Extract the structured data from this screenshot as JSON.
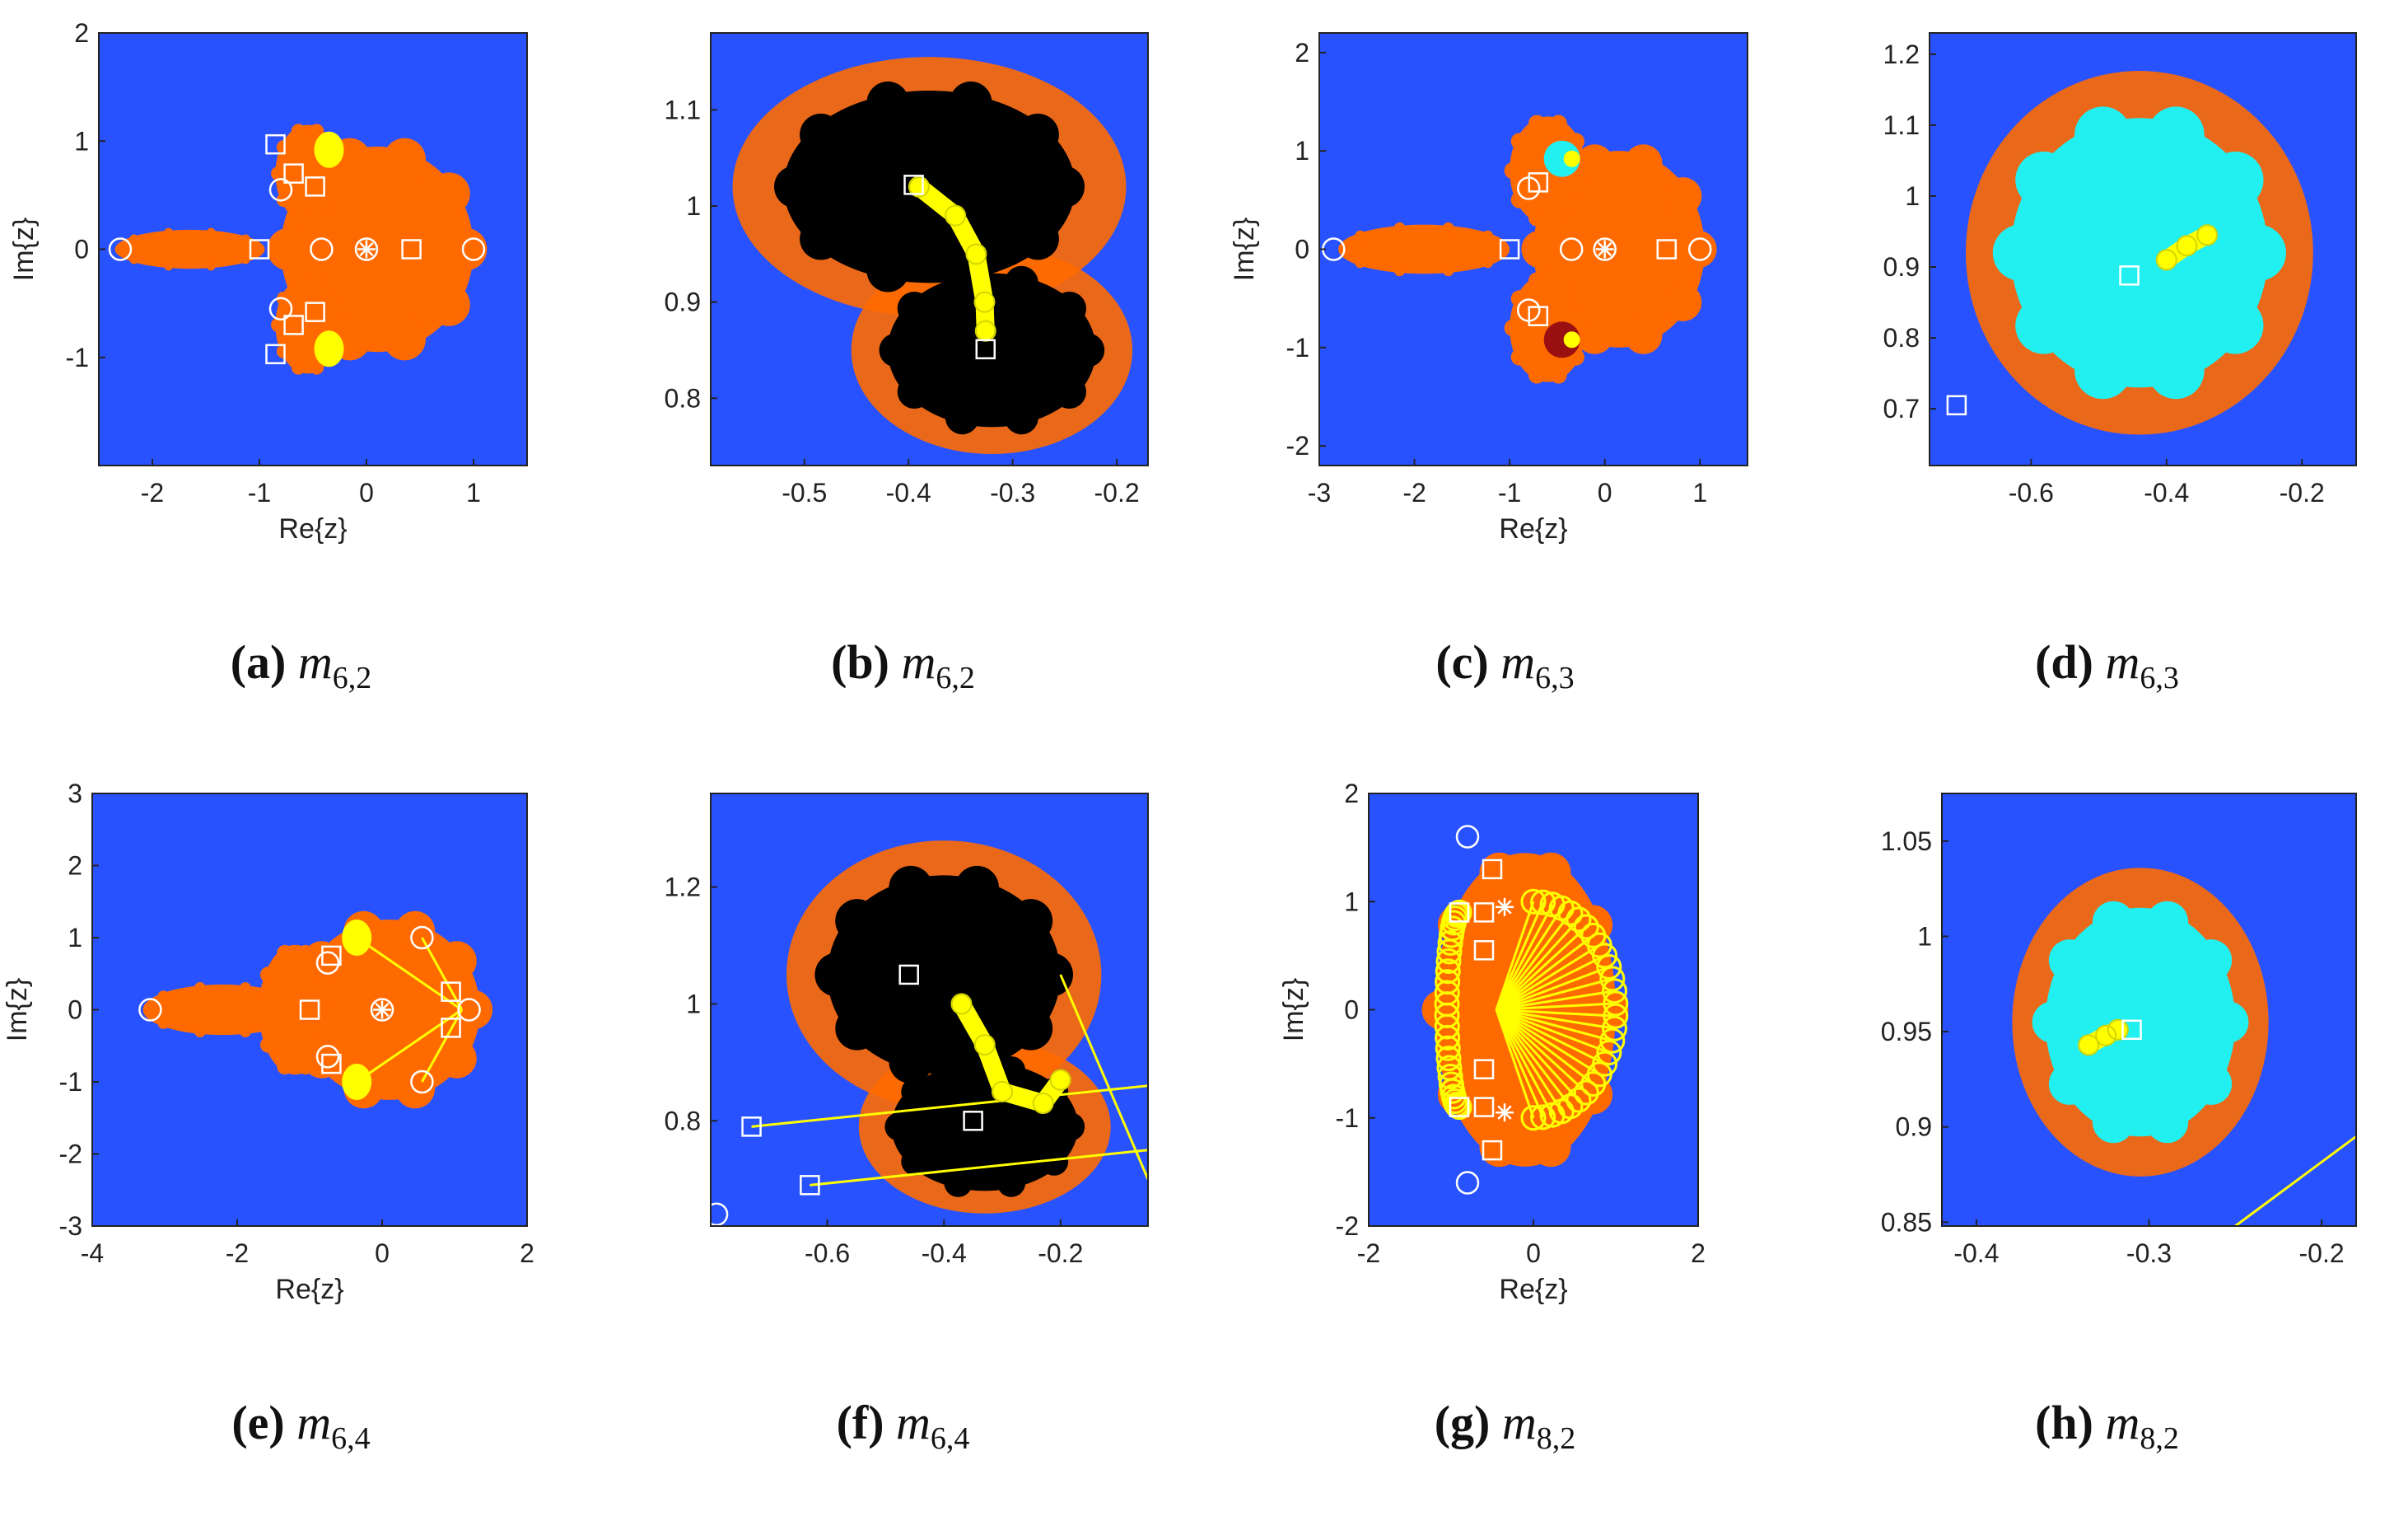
{
  "figure": {
    "panels": [
      {
        "id": "a",
        "label": "(a)",
        "sub": "6,2"
      },
      {
        "id": "b",
        "label": "(b)",
        "sub": "6,2"
      },
      {
        "id": "c",
        "label": "(c)",
        "sub": "6,3"
      },
      {
        "id": "d",
        "label": "(d)",
        "sub": "6,3"
      },
      {
        "id": "e",
        "label": "(e)",
        "sub": "6,4"
      },
      {
        "id": "f",
        "label": "(f)",
        "sub": "6,4"
      },
      {
        "id": "g",
        "label": "(g)",
        "sub": "8,2"
      },
      {
        "id": "h",
        "label": "(h)",
        "sub": "8,2"
      }
    ],
    "caption_symbol": "m"
  },
  "colors": {
    "blue": "#2952ff",
    "orange": "#ff6a00",
    "black": "#000000",
    "cyan": "#22f0f0",
    "yellow": "#ffff00",
    "darkred": "#9a1010",
    "white": "#ffffff"
  },
  "chart_data": [
    {
      "id": "a",
      "type": "scatter",
      "xlabel": "Re{z}",
      "ylabel": "Im{z}",
      "xlim": [
        -2.5,
        1.5
      ],
      "ylim": [
        -2,
        2
      ],
      "xticks": [
        -2,
        -1,
        0,
        1
      ],
      "yticks": [
        -1,
        0,
        1,
        2
      ],
      "xtick_labels": [
        "-2",
        "-1",
        "0",
        "1"
      ],
      "ytick_labels": [
        "-1",
        "0",
        "1",
        "2"
      ],
      "background": "blue",
      "regions": [
        {
          "shape": "ellipse",
          "cx": 0.1,
          "cy": 0,
          "rx": 0.9,
          "ry": 0.95,
          "fill": "orange"
        },
        {
          "shape": "ellipse",
          "cx": -1.65,
          "cy": 0,
          "rx": 0.7,
          "ry": 0.18,
          "fill": "orange"
        },
        {
          "shape": "ellipse",
          "cx": -0.55,
          "cy": 0.7,
          "rx": 0.3,
          "ry": 0.45,
          "fill": "orange"
        },
        {
          "shape": "ellipse",
          "cx": -0.55,
          "cy": -0.7,
          "rx": 0.3,
          "ry": 0.45,
          "fill": "orange"
        }
      ],
      "squares": [
        [
          -0.85,
          0.97
        ],
        [
          -0.68,
          0.7
        ],
        [
          -0.48,
          0.58
        ],
        [
          -1,
          0
        ],
        [
          0.42,
          0
        ],
        [
          -0.85,
          -0.97
        ],
        [
          -0.68,
          -0.7
        ],
        [
          -0.48,
          -0.58
        ]
      ],
      "circles": [
        [
          -2.3,
          0
        ],
        [
          1,
          0
        ],
        [
          -0.8,
          0.55
        ],
        [
          -0.8,
          -0.55
        ],
        [
          -0.42,
          0
        ],
        [
          0,
          0
        ]
      ],
      "stars": [
        [
          0,
          0
        ]
      ],
      "yellow_blobs": [
        [
          -0.35,
          0.92
        ],
        [
          -0.35,
          -0.92
        ]
      ]
    },
    {
      "id": "b",
      "type": "scatter",
      "xlabel": "",
      "ylabel": "",
      "xlim": [
        -0.59,
        -0.17
      ],
      "ylim": [
        0.73,
        1.18
      ],
      "xticks": [
        -0.5,
        -0.4,
        -0.3,
        -0.2
      ],
      "yticks": [
        0.8,
        0.9,
        1,
        1.1
      ],
      "xtick_labels": [
        "-0.5",
        "-0.4",
        "-0.3",
        "-0.2"
      ],
      "ytick_labels": [
        "0.8",
        "0.9",
        "1",
        "1.1"
      ],
      "background": "blue",
      "regions": [
        {
          "shape": "ellipse",
          "cx": -0.38,
          "cy": 1.02,
          "rx": 0.14,
          "ry": 0.1,
          "fill": "black"
        },
        {
          "shape": "ellipse",
          "cx": -0.32,
          "cy": 0.85,
          "rx": 0.1,
          "ry": 0.08,
          "fill": "black"
        }
      ],
      "squares": [
        [
          -0.395,
          1.022
        ],
        [
          -0.326,
          0.851
        ]
      ],
      "yellow_path": [
        [
          -0.39,
          1.02
        ],
        [
          -0.355,
          0.99
        ],
        [
          -0.335,
          0.95
        ],
        [
          -0.327,
          0.9
        ],
        [
          -0.326,
          0.87
        ]
      ]
    },
    {
      "id": "c",
      "type": "scatter",
      "xlabel": "Re{z}",
      "ylabel": "Im{z}",
      "xlim": [
        -3,
        1.5
      ],
      "ylim": [
        -2.2,
        2.2
      ],
      "xticks": [
        -3,
        -2,
        -1,
        0,
        1
      ],
      "yticks": [
        -2,
        -1,
        0,
        1,
        2
      ],
      "xtick_labels": [
        "-3",
        "-2",
        "-1",
        "0",
        "1"
      ],
      "ytick_labels": [
        "-2",
        "-1",
        "0",
        "1",
        "2"
      ],
      "background": "blue",
      "regions": [
        {
          "shape": "ellipse",
          "cx": 0.15,
          "cy": 0,
          "rx": 0.9,
          "ry": 1.0,
          "fill": "orange"
        },
        {
          "shape": "ellipse",
          "cx": -1.9,
          "cy": 0,
          "rx": 0.9,
          "ry": 0.25,
          "fill": "orange"
        },
        {
          "shape": "ellipse",
          "cx": -0.6,
          "cy": 0.8,
          "rx": 0.4,
          "ry": 0.55,
          "fill": "orange"
        },
        {
          "shape": "ellipse",
          "cx": -0.6,
          "cy": -0.8,
          "rx": 0.4,
          "ry": 0.55,
          "fill": "orange"
        }
      ],
      "squares": [
        [
          -0.7,
          0.68
        ],
        [
          -1,
          0
        ],
        [
          0.65,
          0
        ],
        [
          -0.7,
          -0.68
        ]
      ],
      "circles": [
        [
          -2.85,
          0
        ],
        [
          1,
          0
        ],
        [
          -0.8,
          0.62
        ],
        [
          -0.8,
          -0.62
        ],
        [
          -0.35,
          0
        ],
        [
          0,
          0
        ]
      ],
      "stars": [
        [
          0,
          0
        ]
      ],
      "cyan_blobs": [
        [
          -0.45,
          0.92
        ]
      ],
      "darkred_blobs": [
        [
          -0.45,
          -0.92
        ]
      ]
    },
    {
      "id": "d",
      "type": "scatter",
      "xlabel": "",
      "ylabel": "",
      "xlim": [
        -0.75,
        -0.12
      ],
      "ylim": [
        0.62,
        1.23
      ],
      "xticks": [
        -0.6,
        -0.4,
        -0.2
      ],
      "yticks": [
        0.7,
        0.8,
        0.9,
        1,
        1.1,
        1.2
      ],
      "xtick_labels": [
        "-0.6",
        "-0.4",
        "-0.2"
      ],
      "ytick_labels": [
        "0.7",
        "0.8",
        "0.9",
        "1",
        "1.1",
        "1.2"
      ],
      "background": "blue",
      "regions": [
        {
          "shape": "ellipse",
          "cx": -0.44,
          "cy": 0.92,
          "rx": 0.19,
          "ry": 0.19,
          "fill": "cyan"
        }
      ],
      "squares": [
        [
          -0.455,
          0.888
        ],
        [
          -0.71,
          0.705
        ]
      ],
      "yellow_path": [
        [
          -0.4,
          0.91
        ],
        [
          -0.37,
          0.93
        ],
        [
          -0.34,
          0.945
        ]
      ]
    },
    {
      "id": "e",
      "type": "scatter",
      "xlabel": "Re{z}",
      "ylabel": "Im{z}",
      "xlim": [
        -4,
        2
      ],
      "ylim": [
        -3,
        3
      ],
      "xticks": [
        -4,
        -2,
        0,
        2
      ],
      "yticks": [
        -3,
        -2,
        -1,
        0,
        1,
        2,
        3
      ],
      "xtick_labels": [
        "-4",
        "-2",
        "0",
        "2"
      ],
      "ytick_labels": [
        "-3",
        "-2",
        "-1",
        "0",
        "1",
        "2",
        "3"
      ],
      "background": "blue",
      "regions": [
        {
          "shape": "ellipse",
          "cx": 0.1,
          "cy": 0,
          "rx": 1.25,
          "ry": 1.25,
          "fill": "orange"
        },
        {
          "shape": "ellipse",
          "cx": -2.2,
          "cy": 0,
          "rx": 1.1,
          "ry": 0.35,
          "fill": "orange"
        },
        {
          "shape": "ellipse",
          "cx": -1.2,
          "cy": 0,
          "rx": 0.5,
          "ry": 0.9,
          "fill": "orange"
        }
      ],
      "squares": [
        [
          -0.7,
          0.75
        ],
        [
          -1,
          0
        ],
        [
          -0.7,
          -0.75
        ],
        [
          0.95,
          0.25
        ],
        [
          0.95,
          -0.25
        ]
      ],
      "circles": [
        [
          -3.2,
          0
        ],
        [
          0,
          0
        ],
        [
          -0.75,
          0.65
        ],
        [
          -0.75,
          -0.65
        ],
        [
          0.55,
          1
        ],
        [
          0.55,
          -1
        ],
        [
          1.2,
          0
        ]
      ],
      "stars": [
        [
          0,
          0
        ]
      ],
      "yellow_blobs": [
        [
          -0.35,
          1
        ],
        [
          -0.35,
          -1
        ]
      ],
      "yellow_lines": [
        [
          [
            -0.35,
            1
          ],
          [
            1.1,
            0
          ]
        ],
        [
          [
            -0.35,
            -1
          ],
          [
            1.1,
            0
          ]
        ],
        [
          [
            0.55,
            1
          ],
          [
            1.1,
            0
          ]
        ],
        [
          [
            0.55,
            -1
          ],
          [
            1.1,
            0
          ]
        ]
      ]
    },
    {
      "id": "f",
      "type": "scatter",
      "xlabel": "",
      "ylabel": "",
      "xlim": [
        -0.8,
        -0.05
      ],
      "ylim": [
        0.62,
        1.36
      ],
      "xticks": [
        -0.6,
        -0.4,
        -0.2
      ],
      "yticks": [
        0.8,
        1,
        1.2
      ],
      "xtick_labels": [
        "-0.6",
        "-0.4",
        "-0.2"
      ],
      "ytick_labels": [
        "0.8",
        "1",
        "1.2"
      ],
      "background": "blue",
      "regions": [
        {
          "shape": "ellipse",
          "cx": -0.4,
          "cy": 1.05,
          "rx": 0.2,
          "ry": 0.17,
          "fill": "black"
        },
        {
          "shape": "ellipse",
          "cx": -0.33,
          "cy": 0.79,
          "rx": 0.16,
          "ry": 0.11,
          "fill": "black"
        }
      ],
      "squares": [
        [
          -0.46,
          1.05
        ],
        [
          -0.35,
          0.8
        ],
        [
          -0.73,
          0.79
        ],
        [
          -0.63,
          0.69
        ]
      ],
      "circles": [
        [
          -0.79,
          0.64
        ]
      ],
      "yellow_path": [
        [
          -0.37,
          1
        ],
        [
          -0.33,
          0.93
        ],
        [
          -0.3,
          0.85
        ],
        [
          -0.23,
          0.83
        ],
        [
          -0.2,
          0.87
        ]
      ],
      "yellow_lines": [
        [
          [
            -0.73,
            0.79
          ],
          [
            -0.05,
            0.86
          ]
        ],
        [
          [
            -0.63,
            0.69
          ],
          [
            -0.05,
            0.75
          ]
        ],
        [
          [
            -0.2,
            1.05
          ],
          [
            -0.05,
            0.7
          ]
        ]
      ]
    },
    {
      "id": "g",
      "type": "scatter",
      "xlabel": "Re{z}",
      "ylabel": "Im{z}",
      "xlim": [
        -2,
        2
      ],
      "ylim": [
        -2,
        2
      ],
      "xticks": [
        -2,
        0,
        2
      ],
      "yticks": [
        -2,
        -1,
        0,
        1,
        2
      ],
      "xtick_labels": [
        "-2",
        "0",
        "2"
      ],
      "ytick_labels": [
        "-2",
        "-1",
        "0",
        "1",
        "2"
      ],
      "background": "blue",
      "regions": [
        {
          "shape": "ellipse",
          "cx": -0.1,
          "cy": 0,
          "rx": 1.1,
          "ry": 1.45,
          "fill": "orange"
        }
      ],
      "squares": [
        [
          -0.9,
          0.9
        ],
        [
          -0.6,
          0.9
        ],
        [
          -0.5,
          1.3
        ],
        [
          -0.9,
          -0.9
        ],
        [
          -0.6,
          -0.9
        ],
        [
          -0.5,
          -1.3
        ],
        [
          -0.6,
          0.55
        ],
        [
          -0.6,
          -0.55
        ]
      ],
      "circles": [
        [
          -0.8,
          1.6
        ],
        [
          -0.8,
          -1.6
        ]
      ],
      "stars": [
        [
          -0.35,
          0.95
        ],
        [
          -0.35,
          -0.95
        ]
      ],
      "yellow_arc": {
        "cx": 0,
        "cy": 0,
        "r": 1.0,
        "n": 28
      },
      "yellow_fan_center": [
        -0.45,
        0
      ]
    },
    {
      "id": "h",
      "type": "scatter",
      "xlabel": "",
      "ylabel": "",
      "xlim": [
        -0.42,
        -0.18
      ],
      "ylim": [
        0.848,
        1.075
      ],
      "xticks": [
        -0.4,
        -0.3,
        -0.2
      ],
      "yticks": [
        0.85,
        0.9,
        0.95,
        1,
        1.05
      ],
      "xtick_labels": [
        "-0.4",
        "-0.3",
        "-0.2"
      ],
      "ytick_labels": [
        "0.85",
        "0.9",
        "0.95",
        "1",
        "1.05"
      ],
      "background": "blue",
      "regions": [
        {
          "shape": "ellipse",
          "cx": -0.305,
          "cy": 0.955,
          "rx": 0.055,
          "ry": 0.06,
          "fill": "cyan"
        }
      ],
      "squares": [
        [
          -0.31,
          0.951
        ]
      ],
      "yellow_path": [
        [
          -0.335,
          0.943
        ],
        [
          -0.325,
          0.948
        ],
        [
          -0.318,
          0.951
        ]
      ],
      "yellow_lines": [
        [
          [
            -0.25,
            0.848
          ],
          [
            -0.18,
            0.895
          ]
        ]
      ]
    }
  ]
}
